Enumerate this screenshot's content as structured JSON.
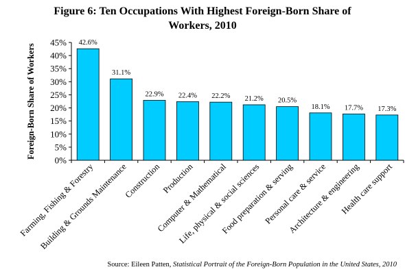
{
  "chart_data": {
    "type": "bar",
    "title_line1": "Figure 6: Ten Occupations With Highest Foreign-Born Share of",
    "title_line2": "Workers, 2010",
    "ylabel": "Foreign-Born Share of Workers",
    "xlabel": "",
    "ylim": [
      0,
      45
    ],
    "yticks": [
      "0%",
      "5%",
      "10%",
      "15%",
      "20%",
      "25%",
      "30%",
      "35%",
      "40%",
      "45%"
    ],
    "categories": [
      "Farming, Fishing & Forestry",
      "Building & Grounds Maintenance",
      "Construction",
      "Production",
      "Computer & Mathematical",
      "Life, physical & social  sciences",
      "Food preparation & serving",
      "Personal care & service",
      "Architecture & engineering",
      "Health care support"
    ],
    "values": [
      42.6,
      31.1,
      22.9,
      22.4,
      22.2,
      21.2,
      20.5,
      18.1,
      17.7,
      17.3
    ],
    "data_labels": [
      "42.6%",
      "31.1%",
      "22.9%",
      "22.4%",
      "22.2%",
      "21.2%",
      "20.5%",
      "18.1%",
      "17.7%",
      "17.3%"
    ],
    "bar_color": "#00ccff",
    "grid": false,
    "legend": "none"
  },
  "source": {
    "prefix": "Source: Eileen Patten, ",
    "title": "Statistical Portrait of the Foreign-Born Population in the United States, 2010"
  }
}
